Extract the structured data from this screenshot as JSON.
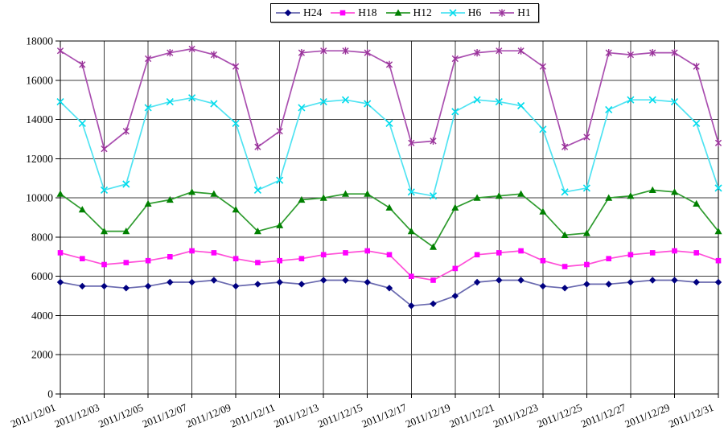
{
  "chart_data": {
    "type": "line",
    "title": "",
    "xlabel": "",
    "ylabel": "",
    "ylim": [
      0,
      18000
    ],
    "y_tick_step": 2000,
    "y_ticks": [
      0,
      2000,
      4000,
      6000,
      8000,
      10000,
      12000,
      14000,
      16000,
      18000
    ],
    "grid": true,
    "legend_position": "top-center",
    "x": [
      "2011/12/01",
      "2011/12/02",
      "2011/12/03",
      "2011/12/04",
      "2011/12/05",
      "2011/12/06",
      "2011/12/07",
      "2011/12/08",
      "2011/12/09",
      "2011/12/10",
      "2011/12/11",
      "2011/12/12",
      "2011/12/13",
      "2011/12/14",
      "2011/12/15",
      "2011/12/16",
      "2011/12/17",
      "2011/12/18",
      "2011/12/19",
      "2011/12/20",
      "2011/12/21",
      "2011/12/22",
      "2011/12/23",
      "2011/12/24",
      "2011/12/25",
      "2011/12/26",
      "2011/12/27",
      "2011/12/28",
      "2011/12/29",
      "2011/12/30",
      "2011/12/31"
    ],
    "x_tick_step": 2,
    "x_tick_labels": [
      "2011/12/01",
      "2011/12/03",
      "2011/12/05",
      "2011/12/07",
      "2011/12/09",
      "2011/12/11",
      "2011/12/13",
      "2011/12/15",
      "2011/12/17",
      "2011/12/19",
      "2011/12/21",
      "2011/12/23",
      "2011/12/25",
      "2011/12/27",
      "2011/12/29",
      "2011/12/31"
    ],
    "series": [
      {
        "name": "H24",
        "marker": "diamond",
        "color": "#000080",
        "line_color": "#6969af",
        "values": [
          5700,
          5500,
          5500,
          5400,
          5500,
          5700,
          5700,
          5800,
          5500,
          5600,
          5700,
          5600,
          5800,
          5800,
          5700,
          5400,
          4500,
          4600,
          5000,
          5700,
          5800,
          5800,
          5500,
          5400,
          5600,
          5600,
          5700,
          5800,
          5800,
          5700,
          5700
        ]
      },
      {
        "name": "H18",
        "marker": "square",
        "color": "#ff00ff",
        "line_color": "#ff4fd8",
        "values": [
          7200,
          6900,
          6600,
          6700,
          6800,
          7000,
          7300,
          7200,
          6900,
          6700,
          6800,
          6900,
          7100,
          7200,
          7300,
          7100,
          6000,
          5800,
          6400,
          7100,
          7200,
          7300,
          6800,
          6500,
          6600,
          6900,
          7100,
          7200,
          7300,
          7200,
          6800
        ]
      },
      {
        "name": "H12",
        "marker": "triangle",
        "color": "#008000",
        "line_color": "#2e9b2e",
        "values": [
          10200,
          9400,
          8300,
          8300,
          9700,
          9900,
          10300,
          10200,
          9400,
          8300,
          8600,
          9900,
          10000,
          10200,
          10200,
          9500,
          8300,
          7500,
          9500,
          10000,
          10100,
          10200,
          9300,
          8100,
          8200,
          10000,
          10100,
          10400,
          10300,
          9700,
          8300
        ]
      },
      {
        "name": "H6",
        "marker": "x",
        "color": "#00dcec",
        "line_color": "#4fe3f2",
        "values": [
          14900,
          13800,
          10400,
          10700,
          14600,
          14900,
          15100,
          14800,
          13800,
          10400,
          10900,
          14600,
          14900,
          15000,
          14800,
          13800,
          10300,
          10100,
          14400,
          15000,
          14900,
          14700,
          13500,
          10300,
          10500,
          14500,
          15000,
          15000,
          14900,
          13800,
          10500
        ]
      },
      {
        "name": "H1",
        "marker": "star",
        "color": "#993399",
        "line_color": "#aa4fb0",
        "values": [
          17500,
          16800,
          12500,
          13400,
          17100,
          17400,
          17600,
          17300,
          16700,
          12600,
          13400,
          17400,
          17500,
          17500,
          17400,
          16800,
          12800,
          12900,
          17100,
          17400,
          17500,
          17500,
          16700,
          12600,
          13100,
          17400,
          17300,
          17400,
          17400,
          16700,
          12800
        ]
      }
    ],
    "colors": {
      "plot_border": "#000000",
      "gridline": "#3c3c3c",
      "background": "#ffffff",
      "text": "#000000"
    }
  }
}
